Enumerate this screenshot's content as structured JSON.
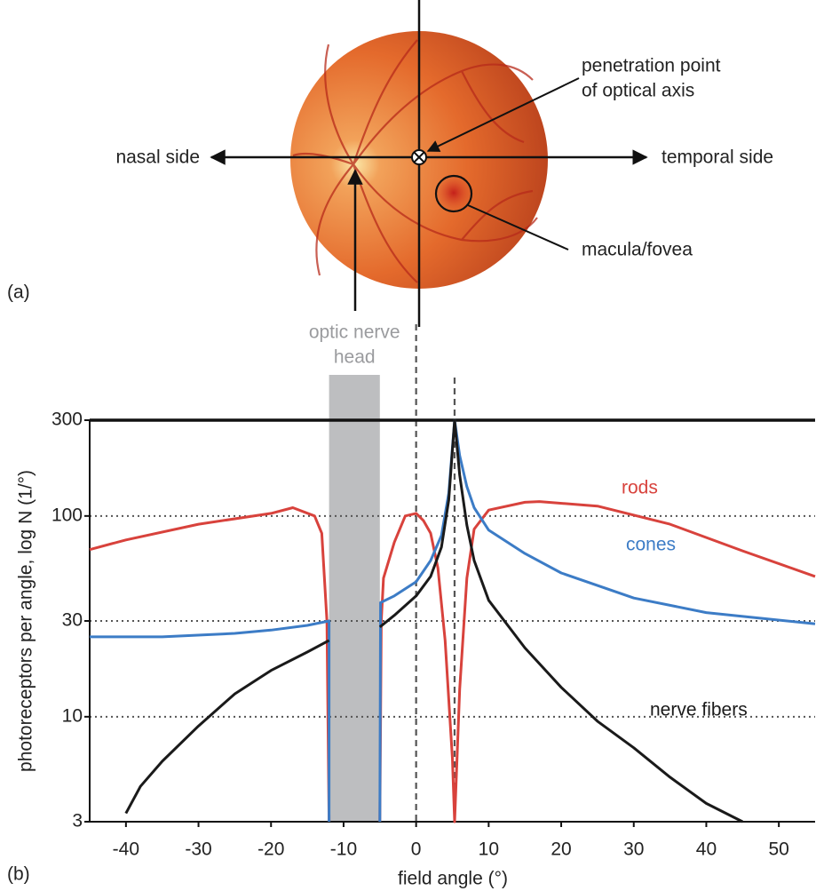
{
  "figure_a": {
    "panel_label": "(a)",
    "left_label": "nasal side",
    "right_label": "temporal side",
    "axis_point_label": [
      "penetration point",
      "of optical axis"
    ],
    "fovea_label": "macula/fovea"
  },
  "chart_data": {
    "type": "line",
    "panel_label": "(b)",
    "xlabel": "field angle (°)",
    "ylabel": "photoreceptors per angle,  log N (1/°)",
    "yscale": "log",
    "xlim": [
      -45,
      55
    ],
    "ylim": [
      3,
      300
    ],
    "xticks": [
      -40,
      -30,
      -20,
      -10,
      0,
      10,
      20,
      30,
      40,
      50
    ],
    "yticks": [
      3,
      10,
      30,
      100,
      300
    ],
    "grid": true,
    "band": {
      "label": [
        "optic nerve",
        "head"
      ],
      "x": [
        -12,
        -5
      ],
      "color": "#bdbec0"
    },
    "vlines": [
      0,
      5.3
    ],
    "series": [
      {
        "name": "rods",
        "color": "#d8423c",
        "x": [
          -45,
          -40,
          -30,
          -20,
          -17,
          -14,
          -13,
          -12.3,
          -12,
          -8.5,
          -5,
          -4.8,
          -4.5,
          -3,
          -1.5,
          0,
          1,
          2,
          3,
          4,
          5,
          5.3,
          6,
          7,
          8,
          10,
          15,
          17,
          25,
          35,
          45,
          55
        ],
        "values": [
          68,
          76,
          91,
          103,
          110,
          100,
          82,
          30,
          3,
          null,
          3,
          30,
          49,
          74,
          100,
          103,
          95,
          82,
          55,
          24,
          6.2,
          3,
          13.7,
          49,
          86,
          107,
          117,
          118,
          112,
          91,
          67,
          50
        ]
      },
      {
        "name": "cones",
        "color": "#3c7cc6",
        "x": [
          -45,
          -35,
          -25,
          -20,
          -15,
          -12,
          -12,
          -8.5,
          -5,
          -4.9,
          -3,
          0,
          2,
          3.5,
          4.5,
          5.3,
          6,
          7,
          8,
          10,
          15,
          20,
          30,
          40,
          55
        ],
        "values": [
          25,
          25,
          26,
          27,
          28.5,
          30,
          3,
          null,
          3,
          37,
          40,
          47,
          60,
          80,
          130,
          300,
          200,
          140,
          110,
          85,
          65,
          52,
          39,
          33,
          29
        ]
      },
      {
        "name": "nerve fibers",
        "color": "#1a1a1a",
        "x": [
          -40,
          -38,
          -35,
          -30,
          -25,
          -20,
          -15,
          -12,
          -8.5,
          -5,
          -3,
          0,
          2,
          3.5,
          4.5,
          5.3,
          6,
          7,
          8,
          10,
          15,
          20,
          25,
          30,
          35,
          40,
          45
        ],
        "values": [
          3.3,
          4.5,
          6,
          9,
          13,
          17,
          21,
          24,
          null,
          28,
          32,
          40,
          50,
          70,
          120,
          300,
          160,
          90,
          60,
          38,
          22,
          14,
          9.5,
          7,
          5,
          3.7,
          3
        ]
      }
    ]
  }
}
